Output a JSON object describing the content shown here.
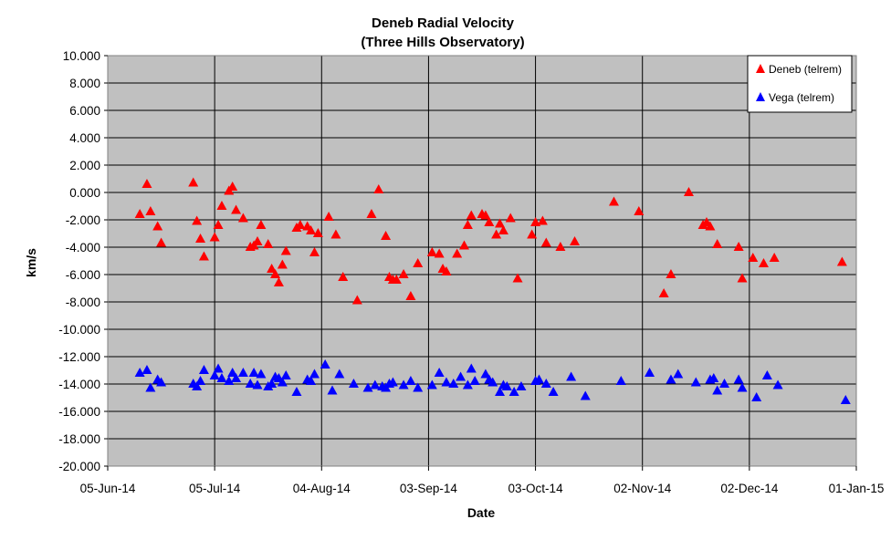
{
  "chart_data": {
    "type": "scatter",
    "title": "Deneb Radial Velocity",
    "subtitle": "(Three Hills Observatory)",
    "xlabel": "Date",
    "ylabel": "km/s",
    "xlim": [
      "2014-06-05",
      "2015-01-01"
    ],
    "ylim": [
      -20,
      10
    ],
    "x_ticks": [
      "05-Jun-14",
      "05-Jul-14",
      "04-Aug-14",
      "03-Sep-14",
      "03-Oct-14",
      "02-Nov-14",
      "02-Dec-14",
      "01-Jan-15"
    ],
    "y_ticks": [
      "10.000",
      "8.000",
      "6.000",
      "4.000",
      "2.000",
      "0.000",
      "-2.000",
      "-4.000",
      "-6.000",
      "-8.000",
      "-10.000",
      "-12.000",
      "-14.000",
      "-16.000",
      "-18.000",
      "-20.000"
    ],
    "grid": true,
    "plot_background": "#c0c0c0",
    "legend_position": "top-right",
    "series": [
      {
        "name": "Deneb (telrem)",
        "color": "#ff0000",
        "marker": "triangle",
        "points": [
          [
            "2014-06-14",
            -1.6
          ],
          [
            "2014-06-16",
            0.6
          ],
          [
            "2014-06-17",
            -1.4
          ],
          [
            "2014-06-19",
            -2.5
          ],
          [
            "2014-06-20",
            -3.7
          ],
          [
            "2014-06-29",
            0.7
          ],
          [
            "2014-06-30",
            -2.1
          ],
          [
            "2014-07-01",
            -3.4
          ],
          [
            "2014-07-02",
            -4.7
          ],
          [
            "2014-07-05",
            -3.3
          ],
          [
            "2014-07-06",
            -2.4
          ],
          [
            "2014-07-07",
            -1.0
          ],
          [
            "2014-07-09",
            0.1
          ],
          [
            "2014-07-10",
            0.4
          ],
          [
            "2014-07-11",
            -1.3
          ],
          [
            "2014-07-13",
            -1.9
          ],
          [
            "2014-07-15",
            -4.0
          ],
          [
            "2014-07-16",
            -3.9
          ],
          [
            "2014-07-17",
            -3.6
          ],
          [
            "2014-07-18",
            -2.4
          ],
          [
            "2014-07-20",
            -3.8
          ],
          [
            "2014-07-21",
            -5.6
          ],
          [
            "2014-07-22",
            -6.0
          ],
          [
            "2014-07-23",
            -6.6
          ],
          [
            "2014-07-24",
            -5.3
          ],
          [
            "2014-07-25",
            -4.3
          ],
          [
            "2014-07-28",
            -2.6
          ],
          [
            "2014-07-29",
            -2.4
          ],
          [
            "2014-07-31",
            -2.5
          ],
          [
            "2014-08-01",
            -2.8
          ],
          [
            "2014-08-02",
            -4.4
          ],
          [
            "2014-08-03",
            -3.0
          ],
          [
            "2014-08-06",
            -1.8
          ],
          [
            "2014-08-08",
            -3.1
          ],
          [
            "2014-08-10",
            -6.2
          ],
          [
            "2014-08-14",
            -7.9
          ],
          [
            "2014-08-18",
            -1.6
          ],
          [
            "2014-08-20",
            0.2
          ],
          [
            "2014-08-22",
            -3.2
          ],
          [
            "2014-08-23",
            -6.2
          ],
          [
            "2014-08-24",
            -6.4
          ],
          [
            "2014-08-25",
            -6.4
          ],
          [
            "2014-08-27",
            -6.0
          ],
          [
            "2014-08-29",
            -7.6
          ],
          [
            "2014-08-31",
            -5.2
          ],
          [
            "2014-09-04",
            -4.4
          ],
          [
            "2014-09-06",
            -4.5
          ],
          [
            "2014-09-07",
            -5.6
          ],
          [
            "2014-09-08",
            -5.8
          ],
          [
            "2014-09-11",
            -4.5
          ],
          [
            "2014-09-13",
            -3.9
          ],
          [
            "2014-09-14",
            -2.4
          ],
          [
            "2014-09-15",
            -1.7
          ],
          [
            "2014-09-18",
            -1.6
          ],
          [
            "2014-09-19",
            -1.7
          ],
          [
            "2014-09-20",
            -2.2
          ],
          [
            "2014-09-22",
            -3.1
          ],
          [
            "2014-09-23",
            -2.3
          ],
          [
            "2014-09-24",
            -2.8
          ],
          [
            "2014-09-26",
            -1.9
          ],
          [
            "2014-09-28",
            -6.3
          ],
          [
            "2014-10-02",
            -3.1
          ],
          [
            "2014-10-03",
            -2.2
          ],
          [
            "2014-10-05",
            -2.1
          ],
          [
            "2014-10-06",
            -3.7
          ],
          [
            "2014-10-10",
            -4.0
          ],
          [
            "2014-10-14",
            -3.6
          ],
          [
            "2014-10-25",
            -0.7
          ],
          [
            "2014-11-01",
            -1.4
          ],
          [
            "2014-11-08",
            -7.4
          ],
          [
            "2014-11-10",
            -6.0
          ],
          [
            "2014-11-15",
            0.0
          ],
          [
            "2014-11-19",
            -2.4
          ],
          [
            "2014-11-20",
            -2.2
          ],
          [
            "2014-11-21",
            -2.5
          ],
          [
            "2014-11-23",
            -3.8
          ],
          [
            "2014-11-29",
            -4.0
          ],
          [
            "2014-11-30",
            -6.3
          ],
          [
            "2014-12-03",
            -4.8
          ],
          [
            "2014-12-06",
            -5.2
          ],
          [
            "2014-12-09",
            -4.8
          ],
          [
            "2014-12-28",
            -5.1
          ]
        ]
      },
      {
        "name": "Vega (telrem)",
        "color": "#0000ff",
        "marker": "triangle",
        "points": [
          [
            "2014-06-14",
            -13.2
          ],
          [
            "2014-06-16",
            -13.0
          ],
          [
            "2014-06-17",
            -14.3
          ],
          [
            "2014-06-19",
            -13.7
          ],
          [
            "2014-06-20",
            -13.9
          ],
          [
            "2014-06-29",
            -14.0
          ],
          [
            "2014-06-30",
            -14.2
          ],
          [
            "2014-07-01",
            -13.8
          ],
          [
            "2014-07-02",
            -13.0
          ],
          [
            "2014-07-05",
            -13.4
          ],
          [
            "2014-07-06",
            -12.9
          ],
          [
            "2014-07-07",
            -13.6
          ],
          [
            "2014-07-09",
            -13.8
          ],
          [
            "2014-07-10",
            -13.2
          ],
          [
            "2014-07-11",
            -13.6
          ],
          [
            "2014-07-13",
            -13.2
          ],
          [
            "2014-07-15",
            -14.0
          ],
          [
            "2014-07-16",
            -13.2
          ],
          [
            "2014-07-17",
            -14.1
          ],
          [
            "2014-07-18",
            -13.3
          ],
          [
            "2014-07-20",
            -14.2
          ],
          [
            "2014-07-21",
            -14.0
          ],
          [
            "2014-07-22",
            -13.5
          ],
          [
            "2014-07-23",
            -13.6
          ],
          [
            "2014-07-24",
            -13.9
          ],
          [
            "2014-07-25",
            -13.4
          ],
          [
            "2014-07-28",
            -14.6
          ],
          [
            "2014-07-31",
            -13.7
          ],
          [
            "2014-08-01",
            -13.8
          ],
          [
            "2014-08-02",
            -13.3
          ],
          [
            "2014-08-05",
            -12.6
          ],
          [
            "2014-08-07",
            -14.5
          ],
          [
            "2014-08-09",
            -13.3
          ],
          [
            "2014-08-13",
            -14.0
          ],
          [
            "2014-08-17",
            -14.3
          ],
          [
            "2014-08-19",
            -14.1
          ],
          [
            "2014-08-21",
            -14.2
          ],
          [
            "2014-08-22",
            -14.3
          ],
          [
            "2014-08-23",
            -14.0
          ],
          [
            "2014-08-24",
            -13.9
          ],
          [
            "2014-08-27",
            -14.1
          ],
          [
            "2014-08-29",
            -13.8
          ],
          [
            "2014-08-31",
            -14.3
          ],
          [
            "2014-09-04",
            -14.1
          ],
          [
            "2014-09-06",
            -13.2
          ],
          [
            "2014-09-08",
            -13.9
          ],
          [
            "2014-09-10",
            -14.0
          ],
          [
            "2014-09-12",
            -13.5
          ],
          [
            "2014-09-14",
            -14.1
          ],
          [
            "2014-09-15",
            -12.9
          ],
          [
            "2014-09-16",
            -13.8
          ],
          [
            "2014-09-19",
            -13.3
          ],
          [
            "2014-09-20",
            -13.7
          ],
          [
            "2014-09-21",
            -13.9
          ],
          [
            "2014-09-23",
            -14.6
          ],
          [
            "2014-09-24",
            -14.1
          ],
          [
            "2014-09-25",
            -14.2
          ],
          [
            "2014-09-27",
            -14.6
          ],
          [
            "2014-09-29",
            -14.2
          ],
          [
            "2014-10-03",
            -13.8
          ],
          [
            "2014-10-04",
            -13.7
          ],
          [
            "2014-10-06",
            -14.0
          ],
          [
            "2014-10-08",
            -14.6
          ],
          [
            "2014-10-13",
            -13.5
          ],
          [
            "2014-10-17",
            -14.9
          ],
          [
            "2014-10-27",
            -13.8
          ],
          [
            "2014-11-04",
            -13.2
          ],
          [
            "2014-11-10",
            -13.7
          ],
          [
            "2014-11-12",
            -13.3
          ],
          [
            "2014-11-17",
            -13.9
          ],
          [
            "2014-11-21",
            -13.7
          ],
          [
            "2014-11-22",
            -13.6
          ],
          [
            "2014-11-23",
            -14.5
          ],
          [
            "2014-11-25",
            -14.0
          ],
          [
            "2014-11-29",
            -13.7
          ],
          [
            "2014-11-30",
            -14.3
          ],
          [
            "2014-12-04",
            -15.0
          ],
          [
            "2014-12-07",
            -13.4
          ],
          [
            "2014-12-10",
            -14.1
          ],
          [
            "2014-12-29",
            -15.2
          ]
        ]
      }
    ]
  }
}
